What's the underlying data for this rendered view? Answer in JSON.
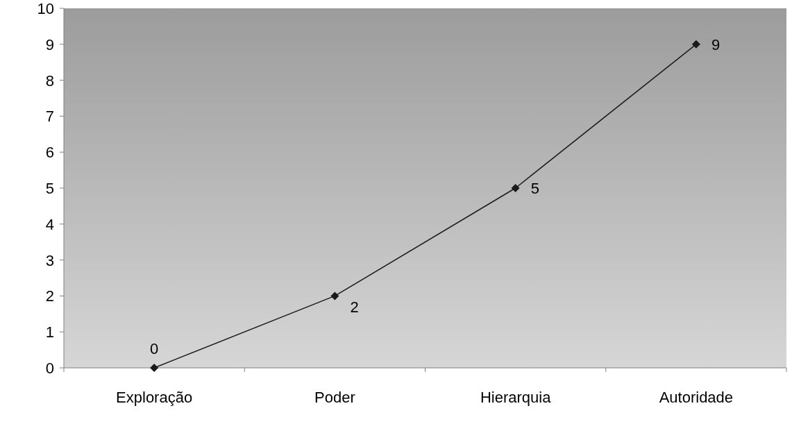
{
  "chart_data": {
    "type": "line",
    "categories": [
      "Exploração",
      "Poder",
      "Hierarquia",
      "Autoridade"
    ],
    "series": [
      {
        "color": "#1a1a1a",
        "values": [
          0,
          2,
          5,
          9
        ]
      }
    ],
    "ylim": [
      0,
      10
    ],
    "yticks": [
      0,
      1,
      2,
      3,
      4,
      5,
      6,
      7,
      8,
      9,
      10
    ],
    "grid": false,
    "marker": "diamond",
    "line_style": "solid",
    "data_labels": true
  }
}
